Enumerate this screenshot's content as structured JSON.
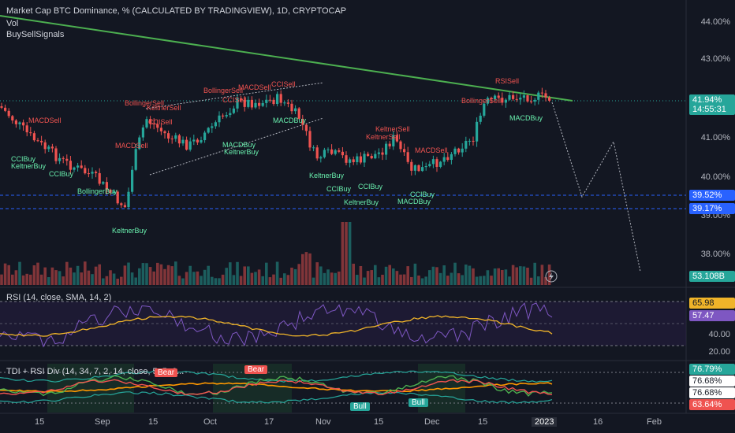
{
  "chart": {
    "title": "Market Cap BTC Dominance, % (CALCULATED BY TRADINGVIEW), 1D, CRYPTOCAP",
    "legend_vol": "Vol",
    "legend_signals": "BuySellSignals",
    "price_axis": [
      "44.00%",
      "43.00%",
      "41.00%",
      "40.00%",
      "39.00%",
      "38.00%"
    ],
    "current_price": "41.94%",
    "countdown": "14:55:31",
    "level_1": "39.52%",
    "level_2": "39.17%",
    "volume_value": "53.108B",
    "colors": {
      "up": "#26a69a",
      "down": "#ef5350",
      "trendline": "#4caf50",
      "accent_blue": "#2962ff"
    }
  },
  "signals": {
    "sell": [
      "MACDSell",
      "MACDSell",
      "BollingerSell",
      "CCISell",
      "KeltnerSell",
      "BollingerSell",
      "MACDSell",
      "CCISell",
      "CCISell",
      "KeltnerSell",
      "KeltnerSell",
      "MACDSell",
      "BollingerSell",
      "RSISell"
    ],
    "buy": [
      "CCIBuy",
      "KeltnerBuy",
      "CCIBuy",
      "BollingerBuy",
      "KeltnerBuy",
      "MACDBuy",
      "KeltnerBuy",
      "MACDBuy",
      "KeltnerBuy",
      "CCIBuy",
      "CCIBuy",
      "KeltnerBuy",
      "CCIBuy",
      "MACDBuy",
      "MACDBuy"
    ]
  },
  "rsi": {
    "legend": "RSI (14, close, SMA, 14, 2)",
    "axis": [
      "40.00",
      "20.00"
    ],
    "value_sma": "65.98",
    "value_rsi": "57.47"
  },
  "tdi": {
    "legend": "TDI + RSI Div (14, 34, 7, 2, 14, close, 5, 5, 6...",
    "labels": {
      "bear": "Bear",
      "bull": "Bull"
    },
    "values": [
      "76.79%",
      "76.68%",
      "76.68%",
      "63.64%"
    ]
  },
  "time_axis": [
    "15",
    "Sep",
    "15",
    "Oct",
    "17",
    "Nov",
    "15",
    "Dec",
    "15",
    "2023",
    "16",
    "Feb"
  ]
}
